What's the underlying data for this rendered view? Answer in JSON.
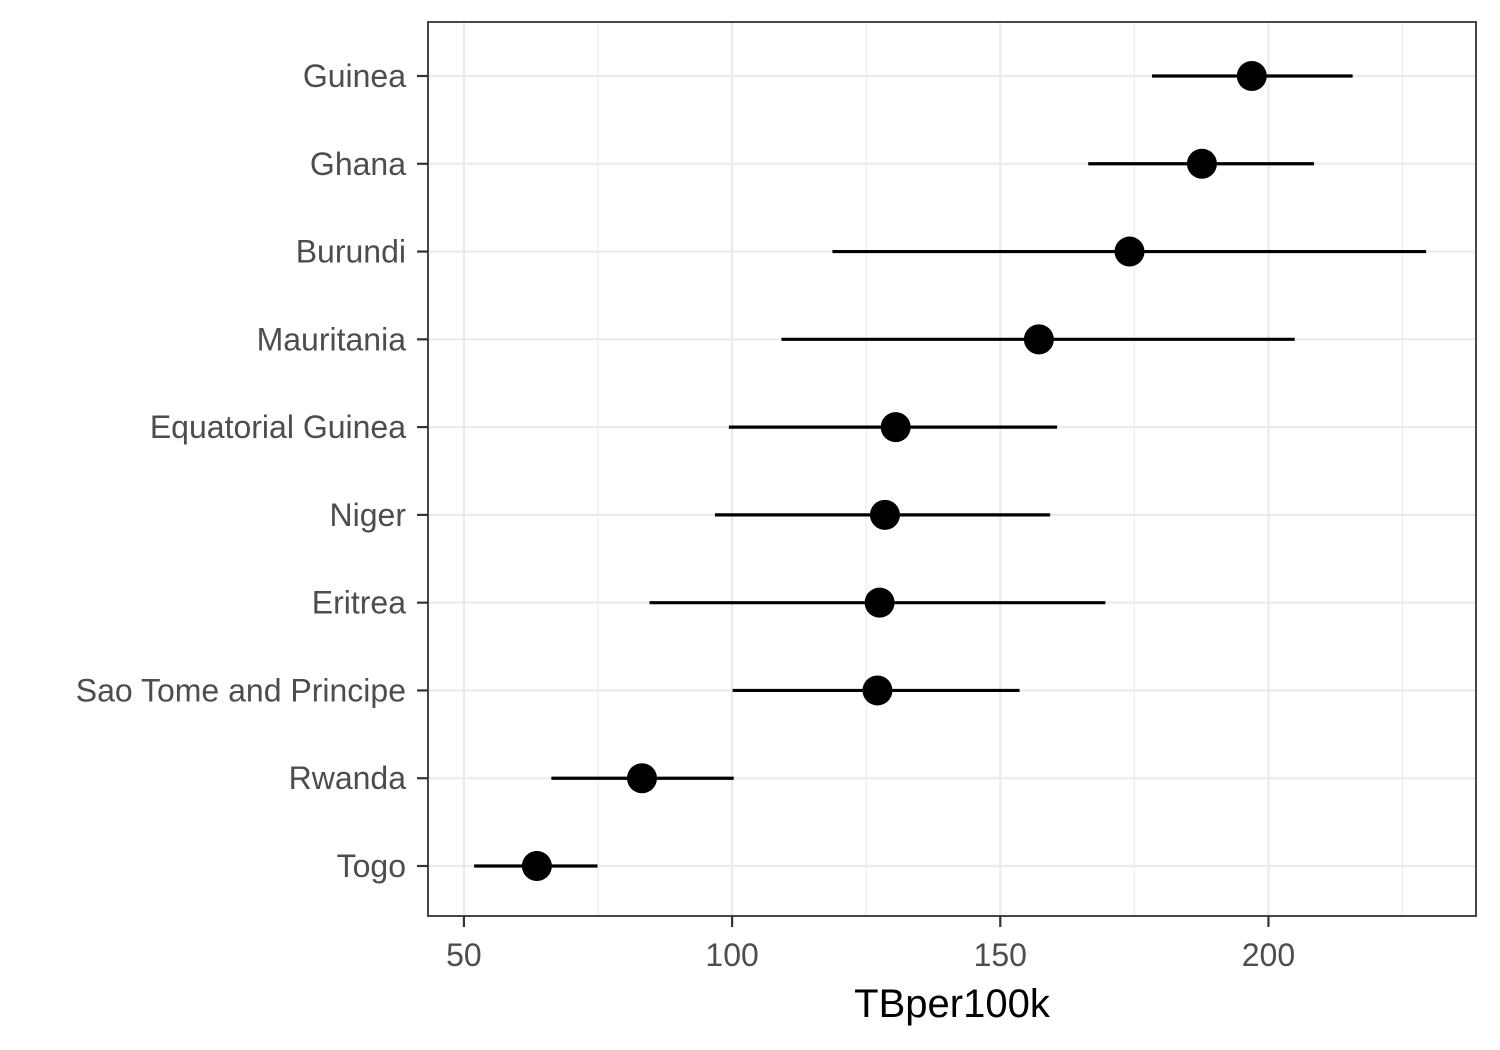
{
  "chart_data": {
    "type": "scatter",
    "title": "",
    "xlabel": "TBper100k",
    "ylabel": "",
    "xlim": [
      43.3,
      238.7
    ],
    "x_ticks": [
      50,
      100,
      150,
      200
    ],
    "x_tick_labels": [
      "50",
      "100",
      "150",
      "200"
    ],
    "grid": true,
    "legend": "none",
    "categories": [
      "Togo",
      "Rwanda",
      "Sao Tome and Principe",
      "Eritrea",
      "Niger",
      "Equatorial Guinea",
      "Mauritania",
      "Burundi",
      "Ghana",
      "Guinea"
    ],
    "values": [
      63.6,
      83.2,
      127.1,
      127.5,
      128.5,
      130.5,
      157.2,
      174.1,
      187.6,
      196.9
    ],
    "lower": [
      51.9,
      66.3,
      100.1,
      84.6,
      96.8,
      99.4,
      109.2,
      118.7,
      166.4,
      178.3
    ],
    "upper": [
      74.9,
      100.3,
      153.6,
      169.6,
      159.3,
      160.6,
      204.9,
      229.4,
      208.5,
      215.7
    ],
    "colors": {
      "point": "#000000",
      "grid": "#ebebeb",
      "border": "#333333",
      "tick_text": "#4d4d4d"
    }
  }
}
